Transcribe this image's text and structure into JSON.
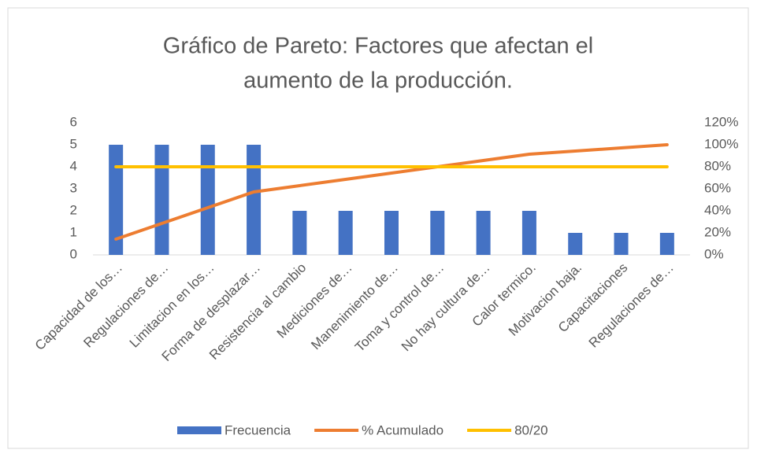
{
  "chart_data": {
    "type": "pareto",
    "title": [
      "Gráfico de Pareto: Factores que afectan el",
      "aumento de la producción."
    ],
    "categories": [
      "Capacidad de los…",
      "Regulaciones de…",
      "Limitacion en los…",
      "Forma de desplazar…",
      "Resistencia al cambio",
      "Mediciones de…",
      "Manenimiento de…",
      "Toma y control de…",
      "No hay cultura de…",
      "Calor termico.",
      "Motivacion baja.",
      "Capacitaciones",
      "Regulaciones de…"
    ],
    "series": [
      {
        "name": "Frecuencia",
        "type": "bar",
        "color": "#4472c4",
        "values": [
          5,
          5,
          5,
          5,
          2,
          2,
          2,
          2,
          2,
          2,
          1,
          1,
          1
        ]
      },
      {
        "name": "% Acumulado",
        "type": "line",
        "axis": "y2",
        "color": "#ed7d31",
        "values": [
          14.29,
          28.57,
          42.86,
          57.14,
          62.86,
          68.57,
          74.29,
          80,
          85.71,
          91.43,
          94.29,
          97.14,
          100
        ]
      },
      {
        "name": "80/20",
        "type": "line",
        "axis": "y2",
        "color": "#ffc000",
        "values": [
          80,
          80,
          80,
          80,
          80,
          80,
          80,
          80,
          80,
          80,
          80,
          80,
          80
        ]
      }
    ],
    "ylim": [
      0,
      6
    ],
    "yticks": [
      0,
      1,
      2,
      3,
      4,
      5,
      6
    ],
    "y2lim": [
      0,
      120
    ],
    "y2ticks": [
      {
        "value": 0,
        "label": "0%"
      },
      {
        "value": 20,
        "label": "20%"
      },
      {
        "value": 40,
        "label": "40%"
      },
      {
        "value": 60,
        "label": "60%"
      },
      {
        "value": 80,
        "label": "80%"
      },
      {
        "value": 100,
        "label": "100%"
      },
      {
        "value": 120,
        "label": "120%"
      }
    ],
    "legend": "bottom",
    "grid": false
  }
}
